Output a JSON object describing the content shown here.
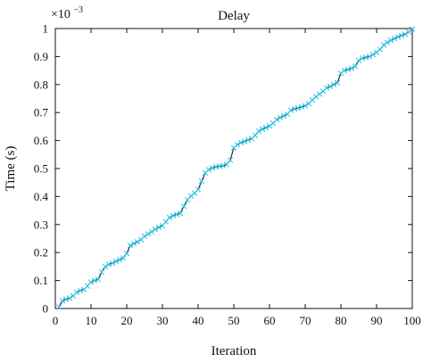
{
  "chart_data": {
    "type": "line",
    "title": "Delay",
    "xlabel": "Iteration",
    "ylabel": "Time (s)",
    "y_multiplier": {
      "base": "×10",
      "exponent": "−3"
    },
    "xlim": [
      0,
      100
    ],
    "ylim": [
      0,
      1
    ],
    "x_ticks": [
      0,
      10,
      20,
      30,
      40,
      50,
      60,
      70,
      80,
      90,
      100
    ],
    "y_ticks": [
      0,
      0.1,
      0.2,
      0.3,
      0.4,
      0.5,
      0.6,
      0.7,
      0.8,
      0.9,
      1
    ],
    "x_tick_labels": [
      "0",
      "10",
      "20",
      "30",
      "40",
      "50",
      "60",
      "70",
      "80",
      "90",
      "100"
    ],
    "y_tick_labels": [
      "0",
      "0.1",
      "0.2",
      "0.3",
      "0.4",
      "0.5",
      "0.6",
      "0.7",
      "0.8",
      "0.9",
      "1"
    ],
    "grid": false,
    "series": [
      {
        "line_color": "#222222",
        "marker_color": "#35c4e8",
        "marker": "x",
        "x": [
          1,
          2,
          3,
          4,
          5,
          6,
          7,
          8,
          9,
          10,
          11,
          12,
          13,
          14,
          15,
          16,
          17,
          18,
          19,
          20,
          21,
          22,
          23,
          24,
          25,
          26,
          27,
          28,
          29,
          30,
          31,
          32,
          33,
          34,
          35,
          36,
          37,
          38,
          39,
          40,
          41,
          42,
          43,
          44,
          45,
          46,
          47,
          48,
          49,
          50,
          51,
          52,
          53,
          54,
          55,
          56,
          57,
          58,
          59,
          60,
          61,
          62,
          63,
          64,
          65,
          66,
          67,
          68,
          69,
          70,
          71,
          72,
          73,
          74,
          75,
          76,
          77,
          78,
          79,
          80,
          81,
          82,
          83,
          84,
          85,
          86,
          87,
          88,
          89,
          90,
          91,
          92,
          93,
          94,
          95,
          96,
          97,
          98,
          99,
          100
        ],
        "values": [
          0.005,
          0.028,
          0.033,
          0.037,
          0.045,
          0.058,
          0.064,
          0.068,
          0.08,
          0.094,
          0.1,
          0.104,
          0.13,
          0.15,
          0.158,
          0.162,
          0.168,
          0.174,
          0.18,
          0.197,
          0.225,
          0.232,
          0.238,
          0.246,
          0.258,
          0.266,
          0.274,
          0.283,
          0.29,
          0.296,
          0.31,
          0.325,
          0.332,
          0.336,
          0.34,
          0.365,
          0.388,
          0.402,
          0.412,
          0.425,
          0.455,
          0.484,
          0.496,
          0.502,
          0.506,
          0.508,
          0.51,
          0.514,
          0.53,
          0.574,
          0.585,
          0.592,
          0.597,
          0.602,
          0.607,
          0.618,
          0.634,
          0.641,
          0.646,
          0.652,
          0.662,
          0.675,
          0.682,
          0.688,
          0.694,
          0.708,
          0.713,
          0.716,
          0.72,
          0.724,
          0.732,
          0.745,
          0.756,
          0.766,
          0.776,
          0.788,
          0.793,
          0.8,
          0.806,
          0.84,
          0.85,
          0.854,
          0.858,
          0.865,
          0.886,
          0.894,
          0.897,
          0.9,
          0.907,
          0.915,
          0.925,
          0.941,
          0.95,
          0.958,
          0.964,
          0.97,
          0.975,
          0.98,
          0.988,
          0.998
        ]
      }
    ]
  }
}
